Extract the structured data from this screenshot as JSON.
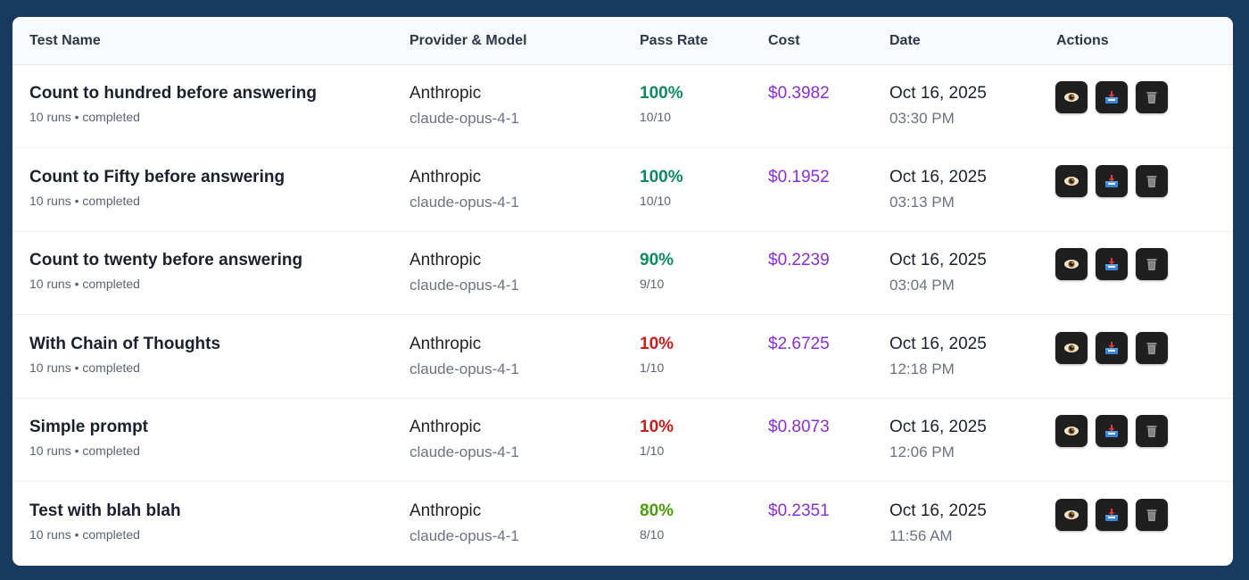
{
  "table": {
    "headers": {
      "test_name": "Test Name",
      "provider_model": "Provider & Model",
      "pass_rate": "Pass Rate",
      "cost": "Cost",
      "date": "Date",
      "actions": "Actions"
    },
    "rows": [
      {
        "name": "Count to hundred before answering",
        "meta": "10 runs • completed",
        "provider": "Anthropic",
        "model": "claude-opus-4-1",
        "pass_rate": "100%",
        "pass_fraction": "10/10",
        "pass_color": "green",
        "cost": "$0.3982",
        "date": "Oct 16, 2025",
        "time": "03:30 PM"
      },
      {
        "name": "Count to Fifty before answering",
        "meta": "10 runs • completed",
        "provider": "Anthropic",
        "model": "claude-opus-4-1",
        "pass_rate": "100%",
        "pass_fraction": "10/10",
        "pass_color": "green",
        "cost": "$0.1952",
        "date": "Oct 16, 2025",
        "time": "03:13 PM"
      },
      {
        "name": "Count to twenty before answering",
        "meta": "10 runs • completed",
        "provider": "Anthropic",
        "model": "claude-opus-4-1",
        "pass_rate": "90%",
        "pass_fraction": "9/10",
        "pass_color": "green",
        "cost": "$0.2239",
        "date": "Oct 16, 2025",
        "time": "03:04 PM"
      },
      {
        "name": "With Chain of Thoughts",
        "meta": "10 runs • completed",
        "provider": "Anthropic",
        "model": "claude-opus-4-1",
        "pass_rate": "10%",
        "pass_fraction": "1/10",
        "pass_color": "red",
        "cost": "$2.6725",
        "date": "Oct 16, 2025",
        "time": "12:18 PM"
      },
      {
        "name": "Simple prompt",
        "meta": "10 runs • completed",
        "provider": "Anthropic",
        "model": "claude-opus-4-1",
        "pass_rate": "10%",
        "pass_fraction": "1/10",
        "pass_color": "red",
        "cost": "$0.8073",
        "date": "Oct 16, 2025",
        "time": "12:06 PM"
      },
      {
        "name": "Test with blah blah",
        "meta": "10 runs • completed",
        "provider": "Anthropic",
        "model": "claude-opus-4-1",
        "pass_rate": "80%",
        "pass_fraction": "8/10",
        "pass_color": "lime",
        "cost": "$0.2351",
        "date": "Oct 16, 2025",
        "time": "11:56 AM"
      }
    ],
    "row_actions": [
      {
        "name": "view-button",
        "icon": "eye-icon"
      },
      {
        "name": "download-button",
        "icon": "inbox-tray-icon"
      },
      {
        "name": "delete-button",
        "icon": "wastebasket-icon"
      }
    ]
  },
  "colors": {
    "background": "#173a5e",
    "pass_green": "#0f8a5f",
    "pass_red": "#c81e1e",
    "pass_lime": "#4d9c0e",
    "cost_purple": "#8a2fd0",
    "action_button": "#1f1f1f"
  }
}
